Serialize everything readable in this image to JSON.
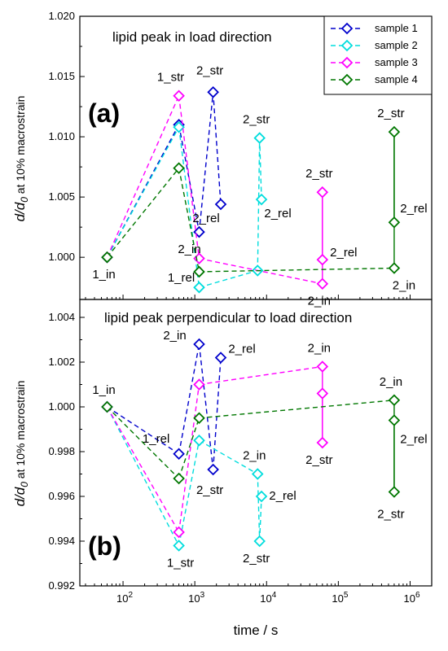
{
  "figure": {
    "ylabel_main": "d/d",
    "ylabel_sub": "0",
    "ylabel_rest": " at 10% macrostrain",
    "xlabel": "time / s"
  },
  "legend": [
    {
      "name": "sample 1",
      "color": "#0000cc"
    },
    {
      "name": "sample 2",
      "color": "#00dddd"
    },
    {
      "name": "sample 3",
      "color": "#ff00ff"
    },
    {
      "name": "sample 4",
      "color": "#007700"
    }
  ],
  "chart_data": [
    {
      "type": "line",
      "panel": "(a)",
      "title": "lipid peak in load direction",
      "xscale": "log",
      "xlim": [
        25,
        2000000
      ],
      "ylim": [
        0.9965,
        1.02
      ],
      "yticks": [
        "1.000",
        "1.005",
        "1.010",
        "1.015",
        "1.020"
      ],
      "ytick_values": [
        1.0,
        1.005,
        1.01,
        1.015,
        1.02
      ],
      "xticks": [
        {
          "base": "10",
          "exp": "2",
          "value": 100
        },
        {
          "base": "10",
          "exp": "3",
          "value": 1000
        },
        {
          "base": "10",
          "exp": "4",
          "value": 10000
        },
        {
          "base": "10",
          "exp": "5",
          "value": 100000
        },
        {
          "base": "10",
          "exp": "6",
          "value": 1000000
        }
      ],
      "series": [
        {
          "name": "sample 1",
          "color": "#0000cc",
          "x": [
            60,
            600,
            1150,
            1800,
            2300
          ],
          "y": [
            1.0,
            1.011,
            1.0021,
            1.0137,
            1.0044
          ]
        },
        {
          "name": "sample 2",
          "color": "#00dddd",
          "x": [
            60,
            600,
            1150,
            7500,
            8000,
            8500
          ],
          "y": [
            1.0,
            1.0108,
            0.9975,
            0.9989,
            1.0099,
            1.0048
          ]
        },
        {
          "name": "sample 3",
          "color": "#ff00ff",
          "x": [
            60,
            600,
            1150,
            60000,
            60000,
            60000
          ],
          "y": [
            1.0,
            1.0134,
            0.9999,
            0.9978,
            1.0054,
            0.9998
          ]
        },
        {
          "name": "sample 4",
          "color": "#007700",
          "x": [
            60,
            600,
            1150,
            600000,
            600000,
            600000
          ],
          "y": [
            1.0,
            1.0074,
            0.9988,
            0.9991,
            1.0104,
            1.0029
          ]
        }
      ],
      "annotations": [
        "1_in",
        "1_str",
        "1_rel",
        "2_str",
        "2_rel",
        "2_in",
        "2_str",
        "2_rel",
        "2_str",
        "2_rel",
        "2_in",
        "2_str",
        "2_rel",
        "2_in"
      ]
    },
    {
      "type": "line",
      "panel": "(b)",
      "title": "lipid peak perpendicular to load direction",
      "xscale": "log",
      "xlim": [
        25,
        2000000
      ],
      "ylim": [
        0.992,
        1.0048
      ],
      "yticks": [
        "0.992",
        "0.994",
        "0.996",
        "0.998",
        "1.000",
        "1.002",
        "1.004"
      ],
      "ytick_values": [
        0.992,
        0.994,
        0.996,
        0.998,
        1.0,
        1.002,
        1.004
      ],
      "xticks": [
        {
          "base": "10",
          "exp": "2",
          "value": 100
        },
        {
          "base": "10",
          "exp": "3",
          "value": 1000
        },
        {
          "base": "10",
          "exp": "4",
          "value": 10000
        },
        {
          "base": "10",
          "exp": "5",
          "value": 100000
        },
        {
          "base": "10",
          "exp": "6",
          "value": 1000000
        }
      ],
      "series": [
        {
          "name": "sample 1",
          "color": "#0000cc",
          "x": [
            60,
            600,
            1150,
            1800,
            2300
          ],
          "y": [
            1.0,
            0.9979,
            1.0028,
            0.9972,
            1.0022
          ]
        },
        {
          "name": "sample 2",
          "color": "#00dddd",
          "x": [
            60,
            600,
            1150,
            7500,
            8000,
            8500
          ],
          "y": [
            1.0,
            0.9938,
            0.9985,
            0.997,
            0.994,
            0.996
          ]
        },
        {
          "name": "sample 3",
          "color": "#ff00ff",
          "x": [
            60,
            600,
            1150,
            60000,
            60000,
            60000
          ],
          "y": [
            1.0,
            0.9944,
            1.001,
            1.0018,
            0.9984,
            1.0006
          ]
        },
        {
          "name": "sample 4",
          "color": "#007700",
          "x": [
            60,
            600,
            1150,
            600000,
            600000,
            600000
          ],
          "y": [
            1.0,
            0.9968,
            0.9995,
            1.0003,
            0.9962,
            0.9994
          ]
        }
      ],
      "annotations": [
        "1_in",
        "1_rel",
        "1_str",
        "2_in",
        "2_rel",
        "2_str",
        "2_in",
        "2_rel",
        "2_str",
        "2_in",
        "2_str",
        "2_in",
        "2_rel",
        "2_str"
      ]
    }
  ]
}
